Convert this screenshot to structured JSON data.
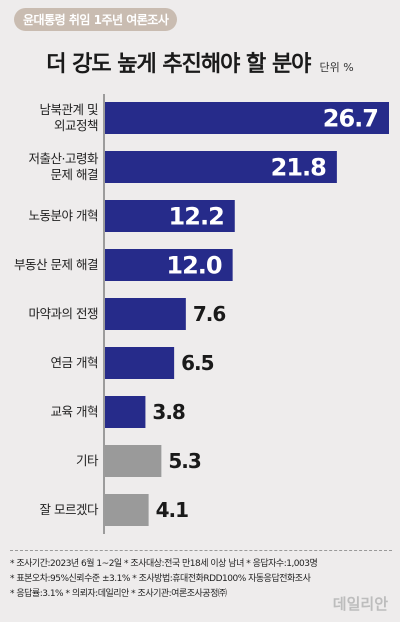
{
  "badge": "윤대통령 취임 1주년 여론조사",
  "header": {
    "title": "더 강도 높게 추진해야 할 분야",
    "unit": "단위 %"
  },
  "chart_data": {
    "type": "bar",
    "orientation": "horizontal",
    "categories": [
      [
        "남북관계 및",
        "외교정책"
      ],
      [
        "저출산·고령화",
        "문제 해결"
      ],
      [
        "노동분야 개혁"
      ],
      [
        "부동산 문제 해결"
      ],
      [
        "마약과의 전쟁"
      ],
      [
        "연금 개혁"
      ],
      [
        "교육 개혁"
      ],
      [
        "기타"
      ],
      [
        "잘 모르겠다"
      ]
    ],
    "values": [
      26.7,
      21.8,
      12.2,
      12.0,
      7.6,
      6.5,
      3.8,
      5.3,
      4.1
    ],
    "value_labels": [
      "26.7",
      "21.8",
      "12.2",
      "12.0",
      "7.6",
      "6.5",
      "3.8",
      "5.3",
      "4.1"
    ],
    "bar_colors": [
      "#262b8a",
      "#262b8a",
      "#262b8a",
      "#262b8a",
      "#262b8a",
      "#262b8a",
      "#262b8a",
      "#9a9a9a",
      "#9a9a9a"
    ],
    "label_text_color": "#ffffff",
    "outside_label_color": "#1a1a1a",
    "axis_color": "#666666",
    "xlim": [
      0,
      26.7
    ]
  },
  "notes": [
    "* 조사기간:2023년 6월 1~2일  * 조사대상:전국 만18세 이상 남녀  * 응답자수:1,003명",
    "* 표본오차:95%신뢰수준 ±3.1%  * 조사방법:휴대전화RDD100% 자동응답전화조사",
    "* 응답률:3.1%  * 의뢰자:데일리안  * 조사기관:여론조사공정㈜"
  ],
  "logo": "데일리안"
}
